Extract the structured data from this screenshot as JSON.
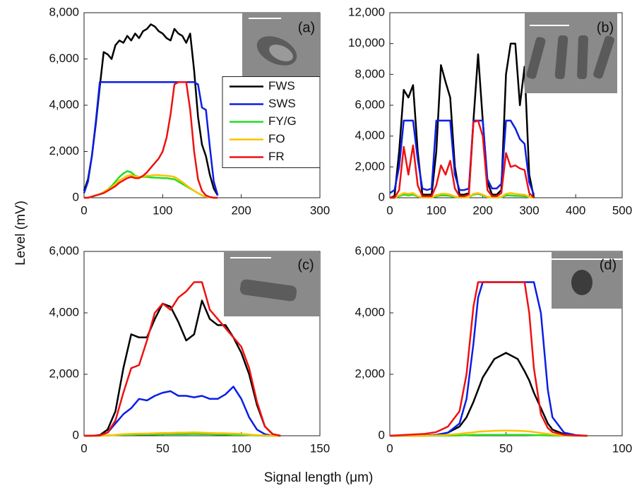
{
  "ylabel": "Level (mV)",
  "xlabel": "Signal length (μm)",
  "chart_data": [
    {
      "type": "line",
      "panel_label": "(a)",
      "legend": "center right",
      "x": [
        0,
        5,
        10,
        15,
        20,
        25,
        30,
        35,
        40,
        45,
        50,
        55,
        60,
        65,
        70,
        75,
        80,
        85,
        90,
        95,
        100,
        105,
        110,
        115,
        120,
        125,
        130,
        135,
        140,
        145,
        150,
        155,
        160,
        165,
        170
      ],
      "xlim": [
        0,
        300
      ],
      "xticks": [
        0,
        100,
        200,
        300
      ],
      "ylim": [
        0,
        8000
      ],
      "yticks": [
        0,
        {
          "value": 2000,
          "label": "2,000"
        },
        {
          "value": 4000,
          "label": "4,000"
        },
        {
          "value": 6000,
          "label": "6,000"
        },
        {
          "value": 8000,
          "label": "8,000"
        }
      ],
      "series": [
        {
          "name": "FWS",
          "color": "#000000",
          "values": [
            300,
            800,
            1800,
            3200,
            4800,
            6300,
            6200,
            6000,
            6600,
            6800,
            6700,
            7000,
            6800,
            7100,
            6900,
            7200,
            7300,
            7500,
            7400,
            7200,
            7100,
            6900,
            6800,
            7300,
            7100,
            7000,
            6700,
            7100,
            5500,
            3500,
            2300,
            1800,
            1000,
            400,
            100
          ]
        },
        {
          "name": "SWS",
          "color": "#0a1ee6",
          "values": [
            200,
            700,
            1800,
            3300,
            5000,
            5000,
            5000,
            5000,
            5000,
            5000,
            5000,
            5000,
            5000,
            5000,
            5000,
            5000,
            5000,
            5000,
            5000,
            5000,
            5000,
            5000,
            5000,
            5000,
            5000,
            5000,
            5000,
            5000,
            5000,
            4900,
            3900,
            3800,
            2200,
            700,
            100
          ]
        },
        {
          "name": "FY/G",
          "color": "#22dd22",
          "values": [
            0,
            0,
            50,
            100,
            150,
            250,
            350,
            500,
            700,
            900,
            1050,
            1150,
            1100,
            950,
            900,
            900,
            900,
            880,
            870,
            860,
            850,
            850,
            820,
            800,
            700,
            600,
            500,
            400,
            300,
            200,
            100,
            50,
            20,
            0,
            0
          ]
        },
        {
          "name": "FO",
          "color": "#ffc000",
          "values": [
            0,
            0,
            50,
            100,
            150,
            250,
            350,
            450,
            600,
            750,
            850,
            950,
            980,
            920,
            900,
            920,
            950,
            960,
            980,
            980,
            960,
            950,
            930,
            900,
            800,
            680,
            550,
            420,
            300,
            200,
            100,
            50,
            20,
            0,
            0
          ]
        },
        {
          "name": "FR",
          "color": "#ee1111",
          "values": [
            0,
            0,
            50,
            100,
            150,
            200,
            300,
            400,
            500,
            650,
            750,
            850,
            900,
            850,
            850,
            950,
            1100,
            1300,
            1500,
            1700,
            2000,
            2600,
            3600,
            4900,
            5000,
            5000,
            5000,
            3800,
            2000,
            800,
            300,
            100,
            30,
            0,
            0
          ]
        }
      ]
    },
    {
      "type": "line",
      "panel_label": "(b)",
      "x": [
        0,
        10,
        20,
        30,
        40,
        50,
        60,
        70,
        80,
        90,
        100,
        110,
        120,
        130,
        140,
        150,
        160,
        170,
        180,
        190,
        200,
        210,
        220,
        230,
        240,
        250,
        260,
        270,
        280,
        290,
        300,
        310
      ],
      "xlim": [
        0,
        500
      ],
      "xticks": [
        0,
        100,
        200,
        300,
        400,
        500
      ],
      "ylim": [
        0,
        12000
      ],
      "yticks": [
        0,
        {
          "value": 2000,
          "label": "2,000"
        },
        {
          "value": 4000,
          "label": "4,000"
        },
        {
          "value": 6000,
          "label": "6,000"
        },
        {
          "value": 8000,
          "label": "8,000"
        },
        {
          "value": 10000,
          "label": "10,000"
        },
        {
          "value": 12000,
          "label": "12,000"
        }
      ],
      "series": [
        {
          "color": "#000000",
          "values": [
            0,
            100,
            3000,
            7000,
            6500,
            7300,
            3000,
            200,
            200,
            200,
            3000,
            8600,
            7500,
            6500,
            2000,
            200,
            200,
            300,
            5000,
            9300,
            5000,
            1000,
            200,
            200,
            500,
            8000,
            10000,
            10000,
            6000,
            8500,
            1500,
            0
          ]
        },
        {
          "color": "#0a1ee6",
          "values": [
            300,
            500,
            2000,
            5000,
            5000,
            5000,
            2500,
            600,
            500,
            600,
            5000,
            5000,
            5000,
            5000,
            1500,
            500,
            500,
            600,
            5000,
            5000,
            5000,
            1200,
            600,
            600,
            900,
            5000,
            5000,
            4500,
            3800,
            3500,
            1000,
            200
          ]
        },
        {
          "color": "#22dd22",
          "values": [
            0,
            0,
            100,
            200,
            150,
            200,
            80,
            20,
            20,
            20,
            100,
            150,
            150,
            120,
            50,
            20,
            20,
            30,
            200,
            250,
            150,
            50,
            20,
            20,
            30,
            150,
            150,
            130,
            120,
            100,
            30,
            0
          ]
        },
        {
          "color": "#ffc000",
          "values": [
            0,
            0,
            150,
            300,
            250,
            300,
            100,
            30,
            30,
            30,
            150,
            250,
            250,
            200,
            80,
            30,
            30,
            40,
            250,
            300,
            200,
            60,
            30,
            30,
            50,
            250,
            300,
            250,
            220,
            200,
            50,
            0
          ]
        },
        {
          "color": "#ee1111",
          "values": [
            0,
            0,
            500,
            3300,
            1500,
            3400,
            800,
            100,
            100,
            100,
            800,
            2100,
            1500,
            2400,
            600,
            100,
            100,
            200,
            4900,
            5000,
            4000,
            500,
            100,
            100,
            300,
            2900,
            2000,
            2100,
            1900,
            1800,
            300,
            0
          ]
        }
      ]
    },
    {
      "type": "line",
      "panel_label": "(c)",
      "x": [
        0,
        5,
        10,
        15,
        20,
        25,
        30,
        35,
        40,
        45,
        50,
        55,
        60,
        65,
        70,
        75,
        80,
        85,
        90,
        95,
        100,
        105,
        110,
        115,
        120,
        125
      ],
      "xlim": [
        0,
        150
      ],
      "xticks": [
        0,
        50,
        100,
        150
      ],
      "ylim": [
        0,
        6000
      ],
      "yticks": [
        0,
        {
          "value": 2000,
          "label": "2,000"
        },
        {
          "value": 4000,
          "label": "4,000"
        },
        {
          "value": 6000,
          "label": "6,000"
        }
      ],
      "series": [
        {
          "color": "#000000",
          "values": [
            0,
            0,
            20,
            200,
            800,
            2200,
            3300,
            3200,
            3200,
            3800,
            4300,
            4200,
            3700,
            3100,
            3300,
            4400,
            3800,
            3600,
            3600,
            3200,
            2700,
            2000,
            1000,
            300,
            50,
            0
          ]
        },
        {
          "color": "#0a1ee6",
          "values": [
            0,
            0,
            10,
            100,
            400,
            700,
            900,
            1200,
            1150,
            1300,
            1400,
            1450,
            1300,
            1300,
            1250,
            1300,
            1200,
            1200,
            1350,
            1600,
            1200,
            600,
            200,
            50,
            0,
            0
          ]
        },
        {
          "color": "#22dd22",
          "values": [
            0,
            0,
            0,
            10,
            20,
            30,
            30,
            40,
            40,
            40,
            50,
            50,
            50,
            50,
            60,
            50,
            50,
            40,
            40,
            30,
            30,
            20,
            10,
            0,
            0,
            0
          ]
        },
        {
          "color": "#ffc000",
          "values": [
            0,
            0,
            0,
            10,
            30,
            50,
            60,
            70,
            70,
            80,
            90,
            90,
            100,
            100,
            110,
            100,
            90,
            80,
            80,
            70,
            60,
            40,
            20,
            10,
            0,
            0
          ]
        },
        {
          "color": "#ee1111",
          "values": [
            0,
            0,
            10,
            100,
            500,
            1400,
            2200,
            2300,
            3100,
            4000,
            4300,
            4100,
            4500,
            4700,
            5000,
            5000,
            4100,
            3800,
            3500,
            3200,
            2900,
            2200,
            1100,
            300,
            50,
            0
          ]
        }
      ]
    },
    {
      "type": "line",
      "panel_label": "(d)",
      "x": [
        0,
        5,
        10,
        15,
        20,
        25,
        30,
        33,
        36,
        38,
        40,
        45,
        50,
        55,
        58,
        60,
        62,
        65,
        68,
        70,
        75,
        80,
        85
      ],
      "xlim": [
        0,
        100
      ],
      "xticks": [
        0,
        50,
        100
      ],
      "ylim": [
        0,
        6000
      ],
      "yticks": [
        0,
        {
          "value": 2000,
          "label": "2,000"
        },
        {
          "value": 4000,
          "label": "4,000"
        },
        {
          "value": 6000,
          "label": "6,000"
        }
      ],
      "series": [
        {
          "color": "#000000",
          "values": [
            0,
            0,
            0,
            0,
            20,
            100,
            300,
            600,
            1100,
            1500,
            1900,
            2500,
            2700,
            2500,
            2100,
            1800,
            1400,
            900,
            400,
            200,
            50,
            10,
            0
          ]
        },
        {
          "color": "#0a1ee6",
          "values": [
            0,
            0,
            0,
            10,
            30,
            100,
            400,
            1200,
            3000,
            4500,
            5000,
            5000,
            5000,
            5000,
            5000,
            5000,
            5000,
            4000,
            1500,
            600,
            100,
            20,
            0
          ]
        },
        {
          "color": "#22dd22",
          "values": [
            0,
            0,
            0,
            0,
            0,
            5,
            10,
            20,
            30,
            30,
            30,
            30,
            30,
            30,
            30,
            25,
            20,
            15,
            10,
            5,
            0,
            0,
            0
          ]
        },
        {
          "color": "#ffc000",
          "values": [
            0,
            0,
            0,
            0,
            10,
            30,
            60,
            90,
            110,
            130,
            140,
            160,
            170,
            160,
            150,
            140,
            120,
            90,
            60,
            40,
            10,
            0,
            0
          ]
        },
        {
          "color": "#ee1111",
          "values": [
            0,
            20,
            40,
            60,
            120,
            300,
            800,
            2000,
            4200,
            5000,
            5000,
            5000,
            5000,
            5000,
            5000,
            4000,
            2200,
            700,
            250,
            120,
            30,
            10,
            0
          ]
        }
      ]
    }
  ]
}
